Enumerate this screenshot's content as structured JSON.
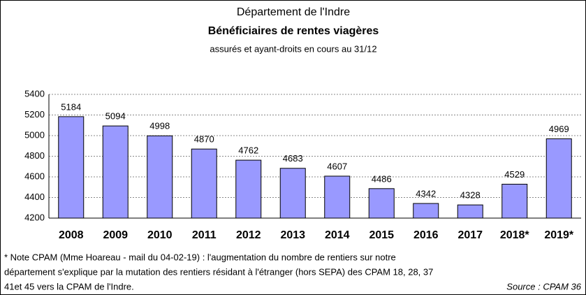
{
  "chart_data": {
    "type": "bar",
    "title": "Département de l'Indre",
    "subtitle": "Bénéficiaires de rentes viagères",
    "subtitle2": "assurés et ayant-droits en cours au 31/12",
    "categories": [
      "2008",
      "2009",
      "2010",
      "2011",
      "2012",
      "2013",
      "2014",
      "2015",
      "2016",
      "2017",
      "2018*",
      "2019*"
    ],
    "values": [
      5184,
      5094,
      4998,
      4870,
      4762,
      4683,
      4607,
      4486,
      4342,
      4328,
      4529,
      4969
    ],
    "color": "#9999ff",
    "ylim": [
      4200,
      5400
    ],
    "yticks": [
      4200,
      4400,
      4600,
      4800,
      5000,
      5200,
      5400
    ],
    "grid": true,
    "notes": [
      "* Note CPAM (Mme Hoareau - mail du 04-02-19) : l'augmentation du nombre de rentiers sur notre",
      "département s'explique par la mutation des rentiers résidant à l'étranger (hors SEPA) des CPAM 18, 28, 37",
      "41et 45 vers la CPAM de l'Indre."
    ],
    "source": "Source : CPAM 36"
  }
}
